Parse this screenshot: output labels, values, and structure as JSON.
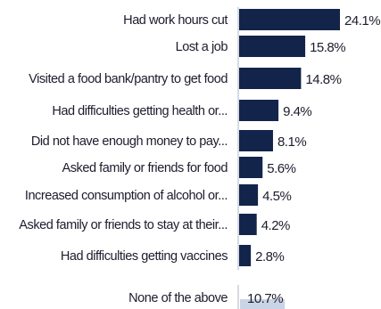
{
  "chart_data": {
    "type": "bar",
    "orientation": "horizontal",
    "categories": [
      "Had work hours cut",
      "Lost a job",
      "Visited a food bank/pantry to get food",
      "Had difficulties getting health or...",
      "Did not have enough money to pay...",
      "Asked family or friends for food",
      "Increased consumption of alcohol or...",
      "Asked family or friends to stay at their...",
      "Had difficulties getting vaccines",
      "None of the above"
    ],
    "values": [
      24.1,
      15.8,
      14.8,
      9.4,
      8.1,
      5.6,
      4.5,
      4.2,
      2.8,
      10.7
    ],
    "value_labels": [
      "24.1%",
      "15.8%",
      "14.8%",
      "9.4%",
      "8.1%",
      "5.6%",
      "4.5%",
      "4.2%",
      "2.8%",
      "10.7%"
    ],
    "xlim": [
      0,
      24.1
    ],
    "grid": false,
    "legend": "none",
    "colors": {
      "bar": "#13244a",
      "none_bar": "#c9d4e6",
      "axis": "#d6dbe3",
      "text": "#1c1c2e"
    }
  }
}
